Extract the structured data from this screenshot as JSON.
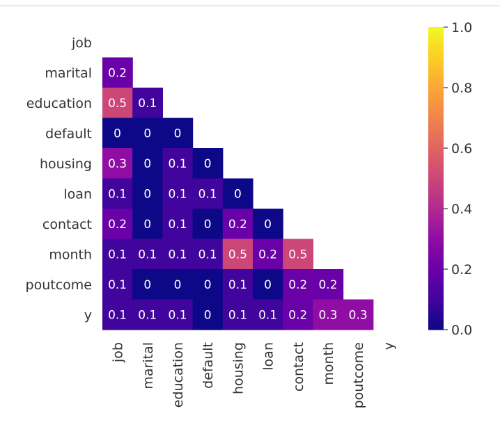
{
  "chart_data": {
    "type": "heatmap",
    "variables": [
      "job",
      "marital",
      "education",
      "default",
      "housing",
      "loan",
      "contact",
      "month",
      "poutcome",
      "y"
    ],
    "mask": "upper-triangle-including-diagonal",
    "matrix": [
      [
        null,
        null,
        null,
        null,
        null,
        null,
        null,
        null,
        null,
        null
      ],
      [
        0.2,
        null,
        null,
        null,
        null,
        null,
        null,
        null,
        null,
        null
      ],
      [
        0.5,
        0.1,
        null,
        null,
        null,
        null,
        null,
        null,
        null,
        null
      ],
      [
        0,
        0,
        0,
        null,
        null,
        null,
        null,
        null,
        null,
        null
      ],
      [
        0.3,
        0,
        0.1,
        0,
        null,
        null,
        null,
        null,
        null,
        null
      ],
      [
        0.1,
        0,
        0.1,
        0.1,
        0,
        null,
        null,
        null,
        null,
        null
      ],
      [
        0.2,
        0,
        0.1,
        0,
        0.2,
        0,
        null,
        null,
        null,
        null
      ],
      [
        0.1,
        0.1,
        0.1,
        0.1,
        0.5,
        0.2,
        0.5,
        null,
        null,
        null
      ],
      [
        0.1,
        0,
        0,
        0,
        0.1,
        0,
        0.2,
        0.2,
        null,
        null
      ],
      [
        0.1,
        0.1,
        0.1,
        0,
        0.1,
        0.1,
        0.2,
        0.3,
        0.3,
        null
      ]
    ],
    "colormap": "plasma",
    "vmin": 0.0,
    "vmax": 1.0,
    "colorbar_ticks": [
      0.0,
      0.2,
      0.4,
      0.6,
      0.8,
      1.0
    ],
    "colorbar_tick_labels": [
      "0.0",
      "0.2",
      "0.4",
      "0.6",
      "0.8",
      "1.0"
    ],
    "annotations": true,
    "title": "",
    "xlabel": "",
    "ylabel": ""
  }
}
